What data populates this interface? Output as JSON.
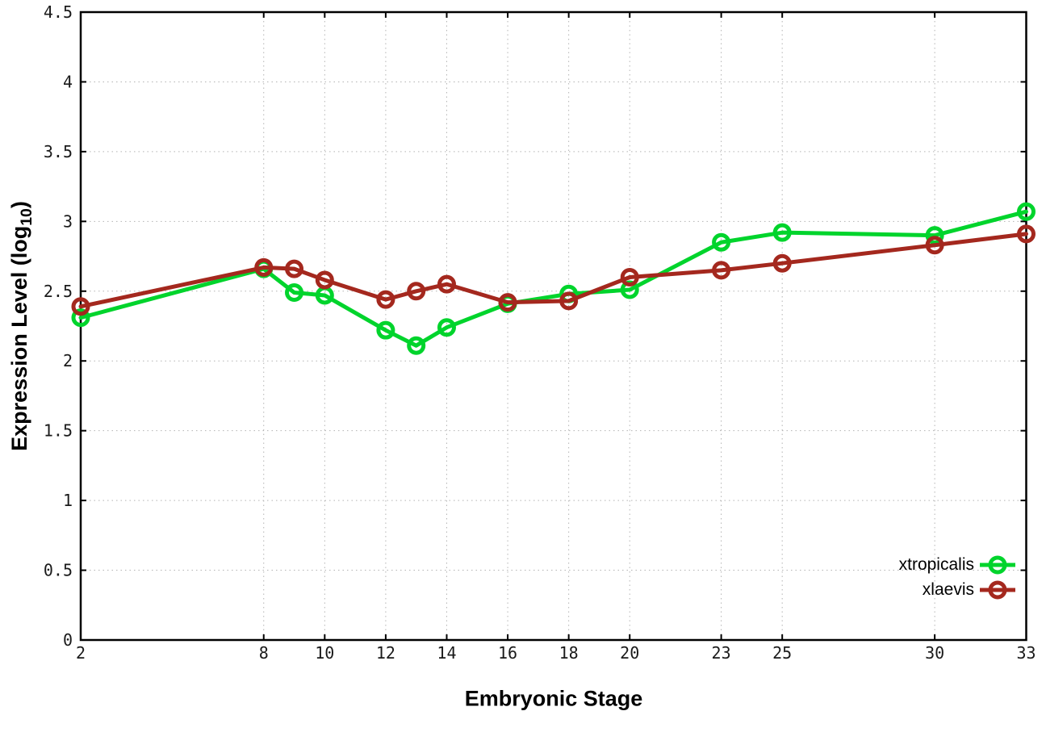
{
  "chart_data": {
    "type": "line",
    "xlabel": "Embryonic Stage",
    "ylabel": "Expression Level (log10)",
    "ylabel_parts": {
      "prefix": "Expression Level (log",
      "sub": "10",
      "suffix": ")"
    },
    "xlim": [
      2,
      33
    ],
    "ylim": [
      0,
      4.5
    ],
    "xticks": [
      2,
      8,
      10,
      12,
      14,
      16,
      18,
      20,
      23,
      25,
      30,
      33
    ],
    "xtick_labels": [
      "2",
      "8",
      "10",
      "12",
      "14",
      "16",
      "18",
      "20",
      "23",
      "25",
      "30",
      "33"
    ],
    "yticks": [
      0,
      0.5,
      1,
      1.5,
      2,
      2.5,
      3,
      3.5,
      4,
      4.5
    ],
    "ytick_labels": [
      "0",
      "0.5",
      "1",
      "1.5",
      "2",
      "2.5",
      "3",
      "3.5",
      "4",
      "4.5"
    ],
    "grid": true,
    "grid_style": "dotted",
    "legend_position": "inside-bottom-right",
    "x": [
      2,
      8,
      9,
      10,
      12,
      13,
      14,
      16,
      18,
      20,
      23,
      25,
      30,
      33
    ],
    "series": [
      {
        "name": "xtropicalis",
        "color": "#00d42c",
        "marker": "open-circle",
        "values": [
          2.31,
          2.66,
          2.49,
          2.47,
          2.22,
          2.11,
          2.24,
          2.41,
          2.48,
          2.51,
          2.85,
          2.92,
          2.9,
          3.07
        ]
      },
      {
        "name": "xlaevis",
        "color": "#a4281e",
        "marker": "open-circle",
        "values": [
          2.39,
          2.67,
          2.66,
          2.58,
          2.44,
          2.5,
          2.55,
          2.42,
          2.43,
          2.6,
          2.65,
          2.7,
          2.83,
          2.91
        ]
      }
    ],
    "colors": {
      "grid": "#b3b3b3",
      "axis": "#000000",
      "tick_text": "#1a1a1a"
    }
  }
}
